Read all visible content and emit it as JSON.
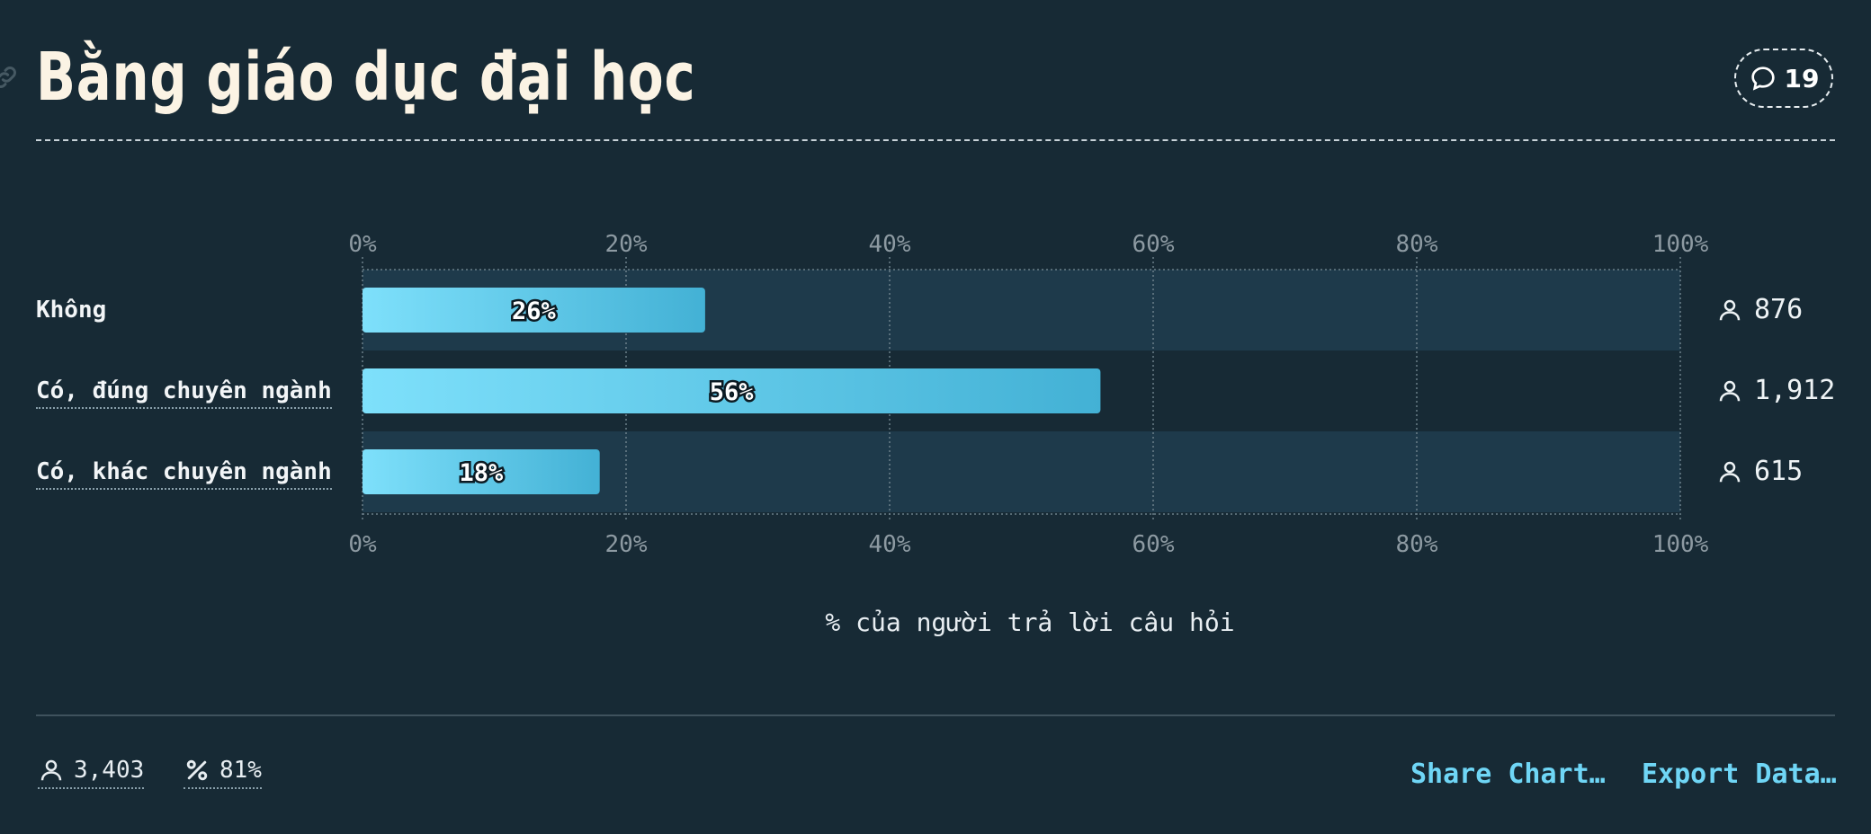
{
  "title": "Bằng giáo dục đại học",
  "comments_count": "19",
  "chart_data": {
    "type": "bar",
    "orientation": "horizontal",
    "categories": [
      "Không",
      "Có, đúng chuyên ngành",
      "Có, khác chuyên ngành"
    ],
    "values": [
      26,
      56,
      18
    ],
    "value_labels": [
      "26%",
      "56%",
      "18%"
    ],
    "counts": [
      "876",
      "1,912",
      "615"
    ],
    "xlim": [
      0,
      100
    ],
    "ticks": [
      "0%",
      "20%",
      "40%",
      "60%",
      "80%",
      "100%"
    ],
    "xlabel": "% của người trả lời câu hỏi",
    "grid": true
  },
  "footer": {
    "respondents": "3,403",
    "response_rate": "81%",
    "share_label": "Share Chart…",
    "export_label": "Export Data…"
  },
  "colors": {
    "background": "#172a35",
    "bar_start": "#7ee0fb",
    "bar_end": "#43b1d5",
    "row_band": "#1e3a4b",
    "accent": "#6fd6f6"
  },
  "icons": [
    "link-icon",
    "comment-icon",
    "person-icon",
    "percent-icon"
  ]
}
